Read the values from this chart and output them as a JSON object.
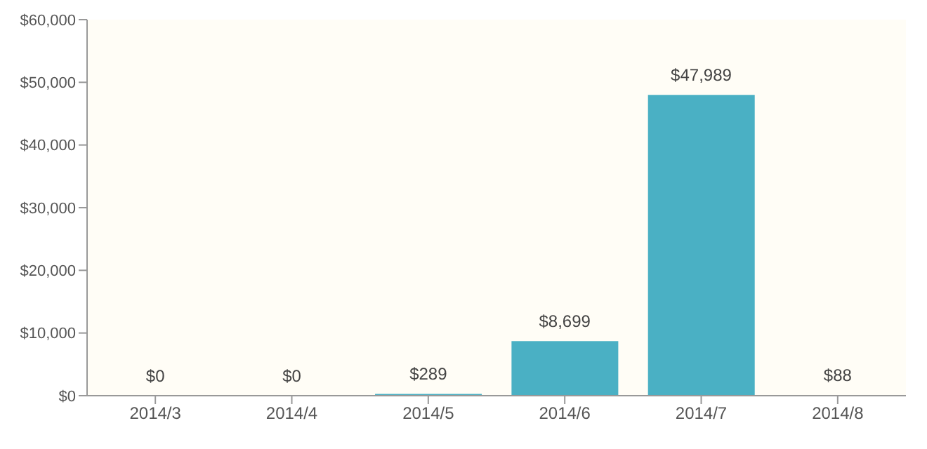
{
  "chart_data": {
    "type": "bar",
    "categories": [
      "2014/3",
      "2014/4",
      "2014/5",
      "2014/6",
      "2014/7",
      "2014/8"
    ],
    "values": [
      0,
      0,
      289,
      8699,
      47989,
      88
    ],
    "value_labels": [
      "$0",
      "$0",
      "$289",
      "$8,699",
      "$47,989",
      "$88"
    ],
    "color": "#4ab0c4",
    "ylim": [
      0,
      60000
    ],
    "yticks": [
      {
        "value": 0,
        "label": "$0"
      },
      {
        "value": 10000,
        "label": "$10,000"
      },
      {
        "value": 20000,
        "label": "$20,000"
      },
      {
        "value": 30000,
        "label": "$30,000"
      },
      {
        "value": 40000,
        "label": "$40,000"
      },
      {
        "value": 50000,
        "label": "$50,000"
      },
      {
        "value": 60000,
        "label": "$60,000"
      }
    ],
    "grid": false,
    "legend": false
  }
}
